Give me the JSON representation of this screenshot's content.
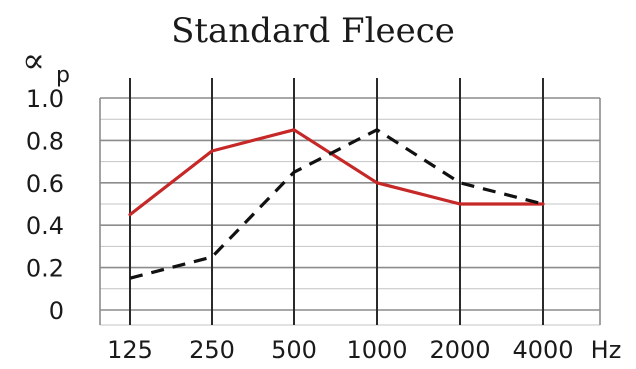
{
  "chart_data": {
    "type": "line",
    "title": "Standard Fleece",
    "ylabel": {
      "main": "∝",
      "sub": "p"
    },
    "xlabel": "Hz",
    "categories": [
      "125",
      "250",
      "500",
      "1000",
      "2000",
      "4000"
    ],
    "yticks": [
      "1.0",
      "0.8",
      "0.6",
      "0.4",
      "0.2",
      "0"
    ],
    "ylim": [
      0,
      1.0
    ],
    "grid": true,
    "series": [
      {
        "values": [
          0.45,
          0.75,
          0.85,
          0.6,
          0.5,
          0.5
        ],
        "color": "#c62828",
        "style": "solid"
      },
      {
        "values": [
          0.15,
          0.25,
          0.65,
          0.85,
          0.6,
          0.5
        ],
        "color": "#111111",
        "style": "dashed"
      }
    ]
  }
}
